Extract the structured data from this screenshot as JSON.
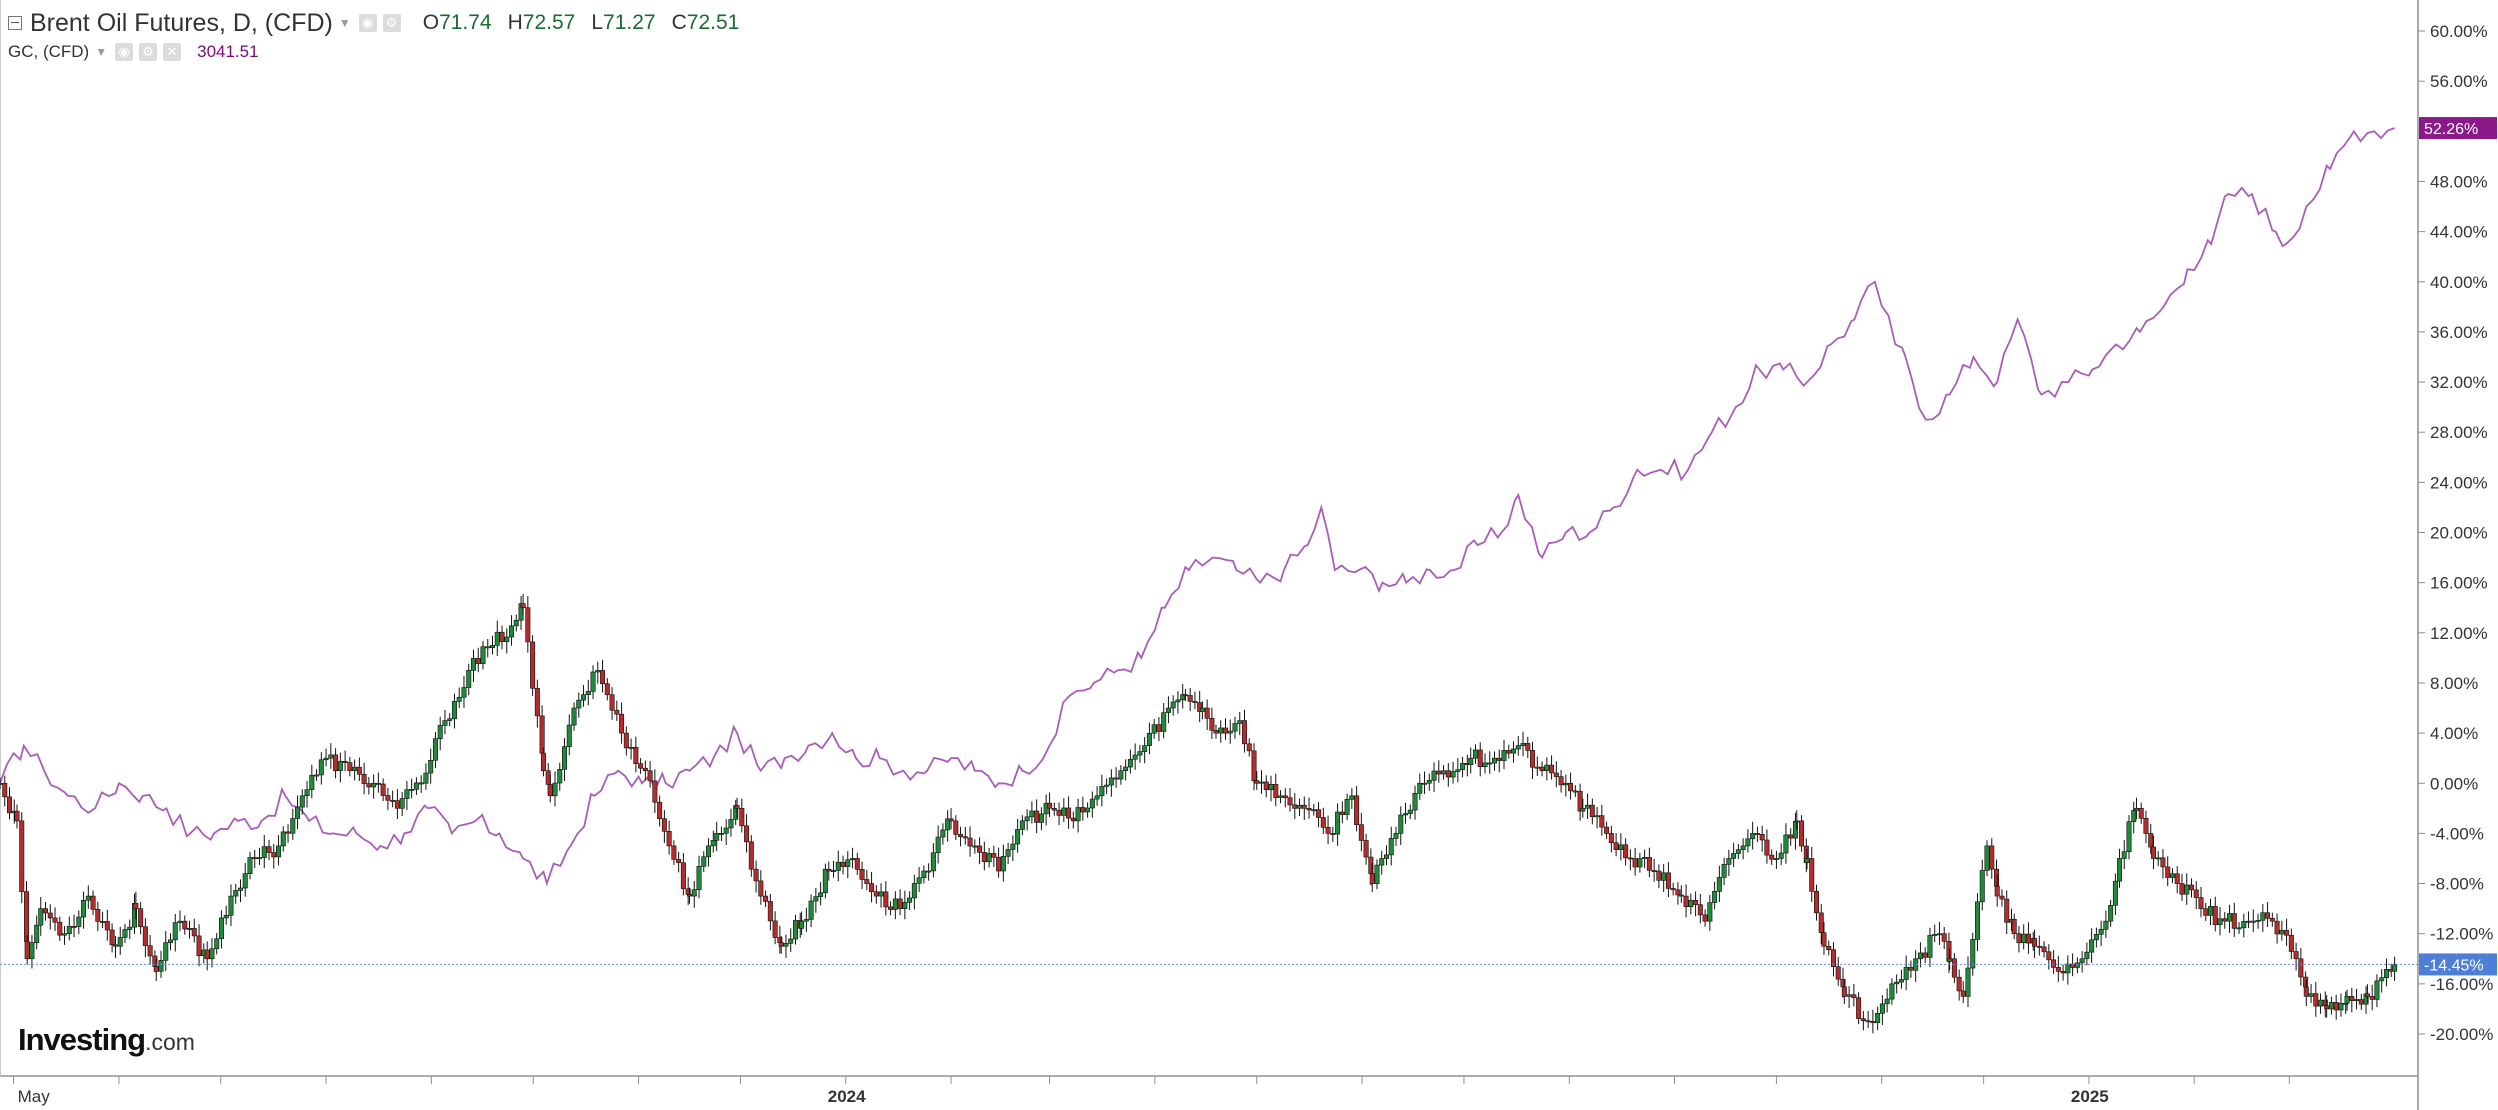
{
  "header": {
    "title": "Brent Oil Futures, D, (CFD)",
    "ohlc": {
      "open_label": "O",
      "open": "71.74",
      "high_label": "H",
      "high": "72.57",
      "low_label": "L",
      "low": "71.27",
      "close_label": "C",
      "close": "72.51"
    },
    "compare_symbol": "GC, (CFD)",
    "compare_value": "3041.51"
  },
  "logo": {
    "brand": "Investing",
    "domain": ".com"
  },
  "colors": {
    "up_candle": "#1e8a3a",
    "down_candle": "#b32d2d",
    "compare_line": "#a95cb8",
    "brent_badge": "#4e7fd6",
    "gold_badge": "#8a1a8a",
    "current_line": "#6a8fdc",
    "axis": "#8f8f8f"
  },
  "chart_data": {
    "type": "line",
    "title": "Brent Oil Futures, D, (CFD)",
    "xlabel": "",
    "ylabel": "",
    "y_unit": "%",
    "ylim": [
      -22,
      61
    ],
    "y_ticks": [
      "60.00%",
      "56.00%",
      "52.00%",
      "48.00%",
      "44.00%",
      "40.00%",
      "36.00%",
      "32.00%",
      "28.00%",
      "24.00%",
      "20.00%",
      "16.00%",
      "12.00%",
      "8.00%",
      "4.00%",
      "0.00%",
      "-4.00%",
      "-8.00%",
      "-12.00%",
      "-16.00%",
      "-20.00%"
    ],
    "x_ticks": [
      {
        "label": "May",
        "date": "2023-05-01",
        "bold": false
      },
      {
        "label": "2024",
        "date": "2024-01-01",
        "bold": true
      },
      {
        "label": "2025",
        "date": "2025-01-01",
        "bold": true
      }
    ],
    "x_tick_marks": [
      "2023-06-01",
      "2023-07-01",
      "2023-08-01",
      "2023-09-01",
      "2023-10-01",
      "2023-11-01",
      "2023-12-01",
      "2024-02-01",
      "2024-03-01",
      "2024-04-01",
      "2024-05-01",
      "2024-06-01",
      "2024-07-01",
      "2024-08-01",
      "2024-09-01",
      "2024-10-01",
      "2024-11-01",
      "2024-12-01",
      "2025-02-01",
      "2025-03-01"
    ],
    "x_range": [
      "2023-04-27",
      "2025-04-02"
    ],
    "grid": false,
    "legend_position": "top-left",
    "current_values": {
      "brent": "-14.45%",
      "gold": "52.26%"
    },
    "series": [
      {
        "name": "Brent Oil Futures, D, (CFD)",
        "type": "candlestick",
        "color_up": "#1e8a3a",
        "color_down": "#b32d2d",
        "points": [
          [
            "2023-04-27",
            0
          ],
          [
            "2023-05-02",
            -3
          ],
          [
            "2023-05-05",
            -14
          ],
          [
            "2023-05-09",
            -10
          ],
          [
            "2023-05-16",
            -12
          ],
          [
            "2023-05-23",
            -9
          ],
          [
            "2023-05-31",
            -13
          ],
          [
            "2023-06-06",
            -10
          ],
          [
            "2023-06-12",
            -15
          ],
          [
            "2023-06-19",
            -11
          ],
          [
            "2023-06-27",
            -14
          ],
          [
            "2023-07-04",
            -9
          ],
          [
            "2023-07-11",
            -6
          ],
          [
            "2023-07-18",
            -5
          ],
          [
            "2023-07-25",
            -1
          ],
          [
            "2023-08-01",
            2
          ],
          [
            "2023-08-08",
            1
          ],
          [
            "2023-08-15",
            0
          ],
          [
            "2023-08-22",
            -2
          ],
          [
            "2023-08-29",
            0
          ],
          [
            "2023-09-05",
            5
          ],
          [
            "2023-09-12",
            9
          ],
          [
            "2023-09-19",
            11
          ],
          [
            "2023-09-26",
            13
          ],
          [
            "2023-09-28",
            14
          ],
          [
            "2023-10-04",
            1
          ],
          [
            "2023-10-06",
            -1
          ],
          [
            "2023-10-13",
            6
          ],
          [
            "2023-10-20",
            9
          ],
          [
            "2023-10-27",
            4
          ],
          [
            "2023-11-03",
            1
          ],
          [
            "2023-11-10",
            -5
          ],
          [
            "2023-11-16",
            -9
          ],
          [
            "2023-11-24",
            -4
          ],
          [
            "2023-11-30",
            -2
          ],
          [
            "2023-12-07",
            -9
          ],
          [
            "2023-12-13",
            -13
          ],
          [
            "2023-12-19",
            -11
          ],
          [
            "2023-12-27",
            -7
          ],
          [
            "2024-01-03",
            -6
          ],
          [
            "2024-01-10",
            -9
          ],
          [
            "2024-01-17",
            -10
          ],
          [
            "2024-01-24",
            -7
          ],
          [
            "2024-02-01",
            -3
          ],
          [
            "2024-02-08",
            -5
          ],
          [
            "2024-02-15",
            -7
          ],
          [
            "2024-02-22",
            -3
          ],
          [
            "2024-03-01",
            -2
          ],
          [
            "2024-03-08",
            -3
          ],
          [
            "2024-03-15",
            -1
          ],
          [
            "2024-03-22",
            1
          ],
          [
            "2024-03-29",
            3
          ],
          [
            "2024-04-05",
            6
          ],
          [
            "2024-04-10",
            7
          ],
          [
            "2024-04-15",
            6
          ],
          [
            "2024-04-19",
            4
          ],
          [
            "2024-04-26",
            5
          ],
          [
            "2024-05-01",
            0
          ],
          [
            "2024-05-08",
            -1
          ],
          [
            "2024-05-15",
            -2
          ],
          [
            "2024-05-22",
            -4
          ],
          [
            "2024-05-29",
            -1
          ],
          [
            "2024-06-04",
            -8
          ],
          [
            "2024-06-11",
            -4
          ],
          [
            "2024-06-18",
            0
          ],
          [
            "2024-06-25",
            1
          ],
          [
            "2024-07-03",
            2
          ],
          [
            "2024-07-10",
            2
          ],
          [
            "2024-07-17",
            3
          ],
          [
            "2024-07-24",
            1
          ],
          [
            "2024-07-31",
            0
          ],
          [
            "2024-08-05",
            -2
          ],
          [
            "2024-08-12",
            -4
          ],
          [
            "2024-08-19",
            -6
          ],
          [
            "2024-08-26",
            -7
          ],
          [
            "2024-09-03",
            -9
          ],
          [
            "2024-09-10",
            -11
          ],
          [
            "2024-09-17",
            -6
          ],
          [
            "2024-09-24",
            -4
          ],
          [
            "2024-10-01",
            -6
          ],
          [
            "2024-10-07",
            -3
          ],
          [
            "2024-10-10",
            -6
          ],
          [
            "2024-10-15",
            -13
          ],
          [
            "2024-10-21",
            -17
          ],
          [
            "2024-10-28",
            -19
          ],
          [
            "2024-11-04",
            -16
          ],
          [
            "2024-11-11",
            -14
          ],
          [
            "2024-11-18",
            -12
          ],
          [
            "2024-11-21",
            -14
          ],
          [
            "2024-11-25",
            -17
          ],
          [
            "2024-12-02",
            -5
          ],
          [
            "2024-12-05",
            -9
          ],
          [
            "2024-12-10",
            -12
          ],
          [
            "2024-12-16",
            -13
          ],
          [
            "2024-12-23",
            -15
          ],
          [
            "2024-12-30",
            -14
          ],
          [
            "2025-01-06",
            -11
          ],
          [
            "2025-01-10",
            -6
          ],
          [
            "2025-01-15",
            -2
          ],
          [
            "2025-01-20",
            -6
          ],
          [
            "2025-01-27",
            -8
          ],
          [
            "2025-02-03",
            -10
          ],
          [
            "2025-02-10",
            -11
          ],
          [
            "2025-02-17",
            -11
          ],
          [
            "2025-02-24",
            -11
          ],
          [
            "2025-03-03",
            -14
          ],
          [
            "2025-03-06",
            -17
          ],
          [
            "2025-03-12",
            -18
          ],
          [
            "2025-03-18",
            -17
          ],
          [
            "2025-03-24",
            -17
          ],
          [
            "2025-03-31",
            -15
          ],
          [
            "2025-04-01",
            -14.45
          ]
        ]
      },
      {
        "name": "GC, (CFD)",
        "type": "line",
        "color": "#a95cb8",
        "points": [
          [
            "2023-04-27",
            0
          ],
          [
            "2023-05-04",
            3
          ],
          [
            "2023-05-10",
            1
          ],
          [
            "2023-05-17",
            -1
          ],
          [
            "2023-05-25",
            -2
          ],
          [
            "2023-06-01",
            0
          ],
          [
            "2023-06-08",
            -1
          ],
          [
            "2023-06-15",
            -2
          ],
          [
            "2023-06-22",
            -4
          ],
          [
            "2023-06-29",
            -4
          ],
          [
            "2023-07-06",
            -3
          ],
          [
            "2023-07-13",
            -3
          ],
          [
            "2023-07-20",
            -1
          ],
          [
            "2023-07-27",
            -3
          ],
          [
            "2023-08-03",
            -4
          ],
          [
            "2023-08-10",
            -4
          ],
          [
            "2023-08-17",
            -5
          ],
          [
            "2023-08-24",
            -4
          ],
          [
            "2023-08-31",
            -2
          ],
          [
            "2023-09-07",
            -4
          ],
          [
            "2023-09-14",
            -3
          ],
          [
            "2023-09-21",
            -4
          ],
          [
            "2023-09-28",
            -6
          ],
          [
            "2023-10-05",
            -8
          ],
          [
            "2023-10-12",
            -5
          ],
          [
            "2023-10-19",
            -1
          ],
          [
            "2023-10-26",
            1
          ],
          [
            "2023-11-02",
            0
          ],
          [
            "2023-11-09",
            0
          ],
          [
            "2023-11-16",
            1
          ],
          [
            "2023-11-23",
            2
          ],
          [
            "2023-11-30",
            4
          ],
          [
            "2023-12-07",
            1
          ],
          [
            "2023-12-14",
            2
          ],
          [
            "2023-12-21",
            3
          ],
          [
            "2023-12-28",
            4
          ],
          [
            "2024-01-04",
            2
          ],
          [
            "2024-01-11",
            2
          ],
          [
            "2024-01-18",
            1
          ],
          [
            "2024-01-25",
            1
          ],
          [
            "2024-02-01",
            2
          ],
          [
            "2024-02-08",
            1
          ],
          [
            "2024-02-15",
            0
          ],
          [
            "2024-02-22",
            1
          ],
          [
            "2024-03-01",
            3
          ],
          [
            "2024-03-07",
            7
          ],
          [
            "2024-03-14",
            8
          ],
          [
            "2024-03-21",
            9
          ],
          [
            "2024-03-28",
            10
          ],
          [
            "2024-04-04",
            14
          ],
          [
            "2024-04-11",
            17
          ],
          [
            "2024-04-18",
            18
          ],
          [
            "2024-04-25",
            17
          ],
          [
            "2024-05-02",
            16
          ],
          [
            "2024-05-09",
            17
          ],
          [
            "2024-05-16",
            19
          ],
          [
            "2024-05-20",
            22
          ],
          [
            "2024-05-24",
            17
          ],
          [
            "2024-05-31",
            17
          ],
          [
            "2024-06-07",
            16
          ],
          [
            "2024-06-14",
            16
          ],
          [
            "2024-06-21",
            17
          ],
          [
            "2024-06-28",
            17
          ],
          [
            "2024-07-05",
            19
          ],
          [
            "2024-07-12",
            20
          ],
          [
            "2024-07-17",
            23
          ],
          [
            "2024-07-24",
            18
          ],
          [
            "2024-07-31",
            20
          ],
          [
            "2024-08-07",
            20
          ],
          [
            "2024-08-14",
            22
          ],
          [
            "2024-08-21",
            25
          ],
          [
            "2024-08-28",
            25
          ],
          [
            "2024-09-05",
            25
          ],
          [
            "2024-09-12",
            28
          ],
          [
            "2024-09-19",
            30
          ],
          [
            "2024-09-26",
            33
          ],
          [
            "2024-10-03",
            33
          ],
          [
            "2024-10-10",
            32
          ],
          [
            "2024-10-17",
            35
          ],
          [
            "2024-10-24",
            37
          ],
          [
            "2024-10-30",
            40
          ],
          [
            "2024-11-05",
            35
          ],
          [
            "2024-11-08",
            34
          ],
          [
            "2024-11-14",
            29
          ],
          [
            "2024-11-21",
            31
          ],
          [
            "2024-11-28",
            34
          ],
          [
            "2024-12-05",
            32
          ],
          [
            "2024-12-11",
            37
          ],
          [
            "2024-12-18",
            31
          ],
          [
            "2024-12-26",
            32
          ],
          [
            "2025-01-02",
            33
          ],
          [
            "2025-01-09",
            35
          ],
          [
            "2025-01-16",
            36
          ],
          [
            "2025-01-23",
            38
          ],
          [
            "2025-01-30",
            41
          ],
          [
            "2025-02-06",
            43
          ],
          [
            "2025-02-11",
            47
          ],
          [
            "2025-02-18",
            47
          ],
          [
            "2025-02-25",
            44
          ],
          [
            "2025-02-28",
            43
          ],
          [
            "2025-03-06",
            46
          ],
          [
            "2025-03-13",
            49
          ],
          [
            "2025-03-20",
            52
          ],
          [
            "2025-03-26",
            52
          ],
          [
            "2025-04-01",
            52.26
          ]
        ]
      }
    ]
  }
}
